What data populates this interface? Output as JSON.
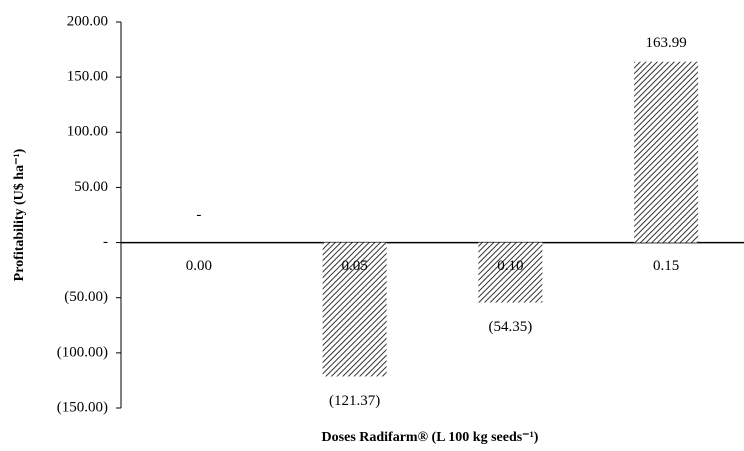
{
  "chart_data": {
    "type": "bar",
    "y_label": "Profitability (U$ ha⁻¹)",
    "x_label": "Doses Radifarm® (L 100 kg seeds⁻¹)",
    "categories": [
      "0.00",
      "0.05",
      "0.10",
      "0.15"
    ],
    "values": [
      0,
      -121.37,
      -54.35,
      163.99
    ],
    "value_labels": [
      "-",
      "(121.37)",
      "(54.35)",
      "163.99"
    ],
    "color": "#333333",
    "pattern": "diagonal-hatch",
    "ylim": [
      -150,
      200
    ],
    "yticks": [
      {
        "value": 200,
        "label": "200.00"
      },
      {
        "value": 150,
        "label": "150.00"
      },
      {
        "value": 100,
        "label": "100.00"
      },
      {
        "value": 50,
        "label": "50.00"
      },
      {
        "value": 0,
        "label": "-"
      },
      {
        "value": -50,
        "label": "(50.00)"
      },
      {
        "value": -100,
        "label": "(100.00)"
      },
      {
        "value": -150,
        "label": "(150.00)"
      }
    ],
    "grid": false
  }
}
